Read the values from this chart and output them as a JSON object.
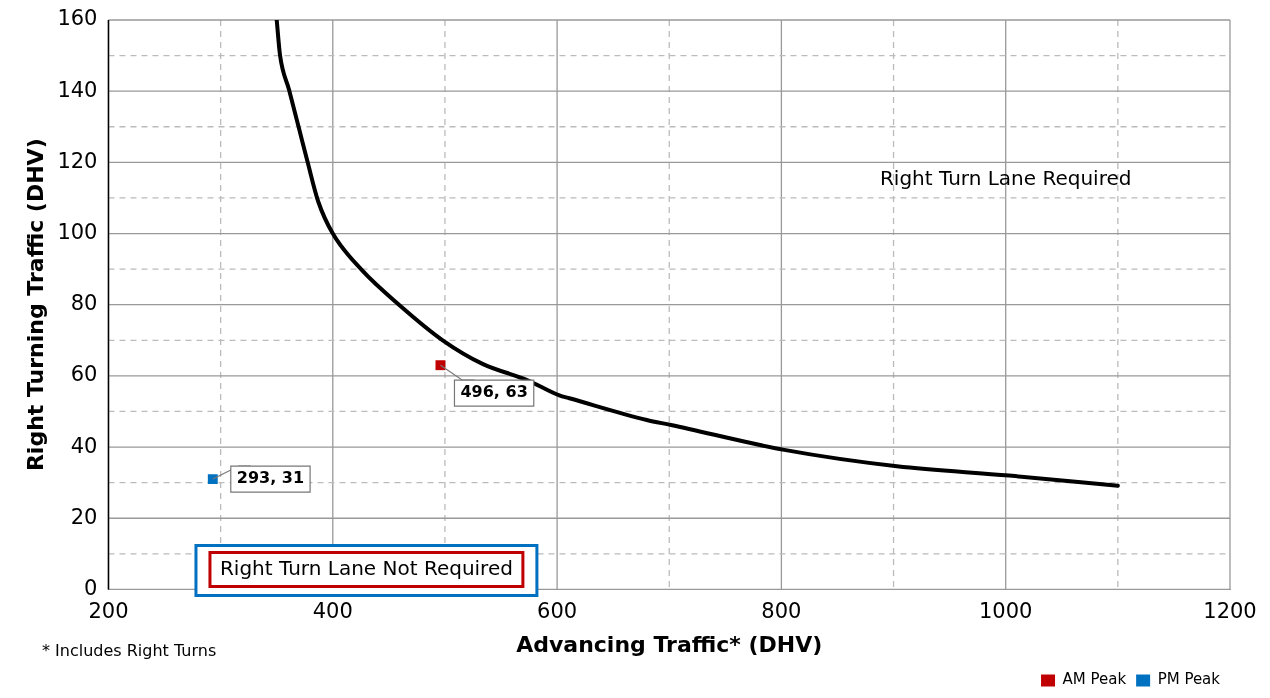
{
  "chart_data": {
    "type": "scatter",
    "xlabel": "Advancing Traffic* (DHV)",
    "ylabel": "Right Turning Traffic (DHV)",
    "xlim": [
      200,
      1200
    ],
    "xticks": [
      200,
      {
        "value": 300,
        "label": null
      },
      400,
      {
        "value": 500,
        "label": null
      },
      600,
      {
        "value": 700,
        "label": null
      },
      800,
      {
        "value": 900,
        "label": null
      },
      1000,
      {
        "value": 1100,
        "label": null
      },
      1200
    ],
    "ylim": [
      0,
      160
    ],
    "yticks": [
      0,
      {
        "value": 10,
        "label": null
      },
      20,
      {
        "value": 30,
        "label": null
      },
      40,
      {
        "value": 50,
        "label": null
      },
      60,
      {
        "value": 70,
        "label": null
      },
      80,
      {
        "value": 90,
        "label": null
      },
      100,
      {
        "value": 110,
        "label": null
      },
      120,
      {
        "value": 130,
        "label": null
      },
      140,
      {
        "value": 150,
        "label": null
      },
      160
    ],
    "grid": true,
    "legend": "bottom right",
    "marker": "square",
    "series": [
      {
        "type": "line",
        "color": "#000000",
        "marker": "none",
        "x": [
          350,
          353,
          361,
          369.5,
          377.6,
          387,
          400,
          426,
          459,
          498,
          534,
          572.7,
          602,
          611,
          680,
          701.5,
          802.6,
          903,
          1003,
          1100
        ],
        "values": [
          160,
          150,
          140.4,
          130,
          120,
          109,
          100,
          89.7,
          80,
          70,
          63.3,
          58.9,
          54.5,
          53.7,
          47.6,
          46.2,
          39.2,
          34.6,
          32,
          29.1
        ]
      },
      {
        "name": "AM Peak",
        "color": "#c00000",
        "x": [
          496
        ],
        "values": [
          63
        ],
        "value_labels": [
          "496, 63"
        ]
      },
      {
        "name": "PM Peak",
        "color": "#0070c0",
        "x": [
          293
        ],
        "values": [
          31
        ],
        "value_labels": [
          "293, 31"
        ]
      }
    ],
    "annotations": [
      "Right Turn Lane Required",
      "Right Turn Lane Not Required",
      "* Includes Right Turns"
    ]
  }
}
